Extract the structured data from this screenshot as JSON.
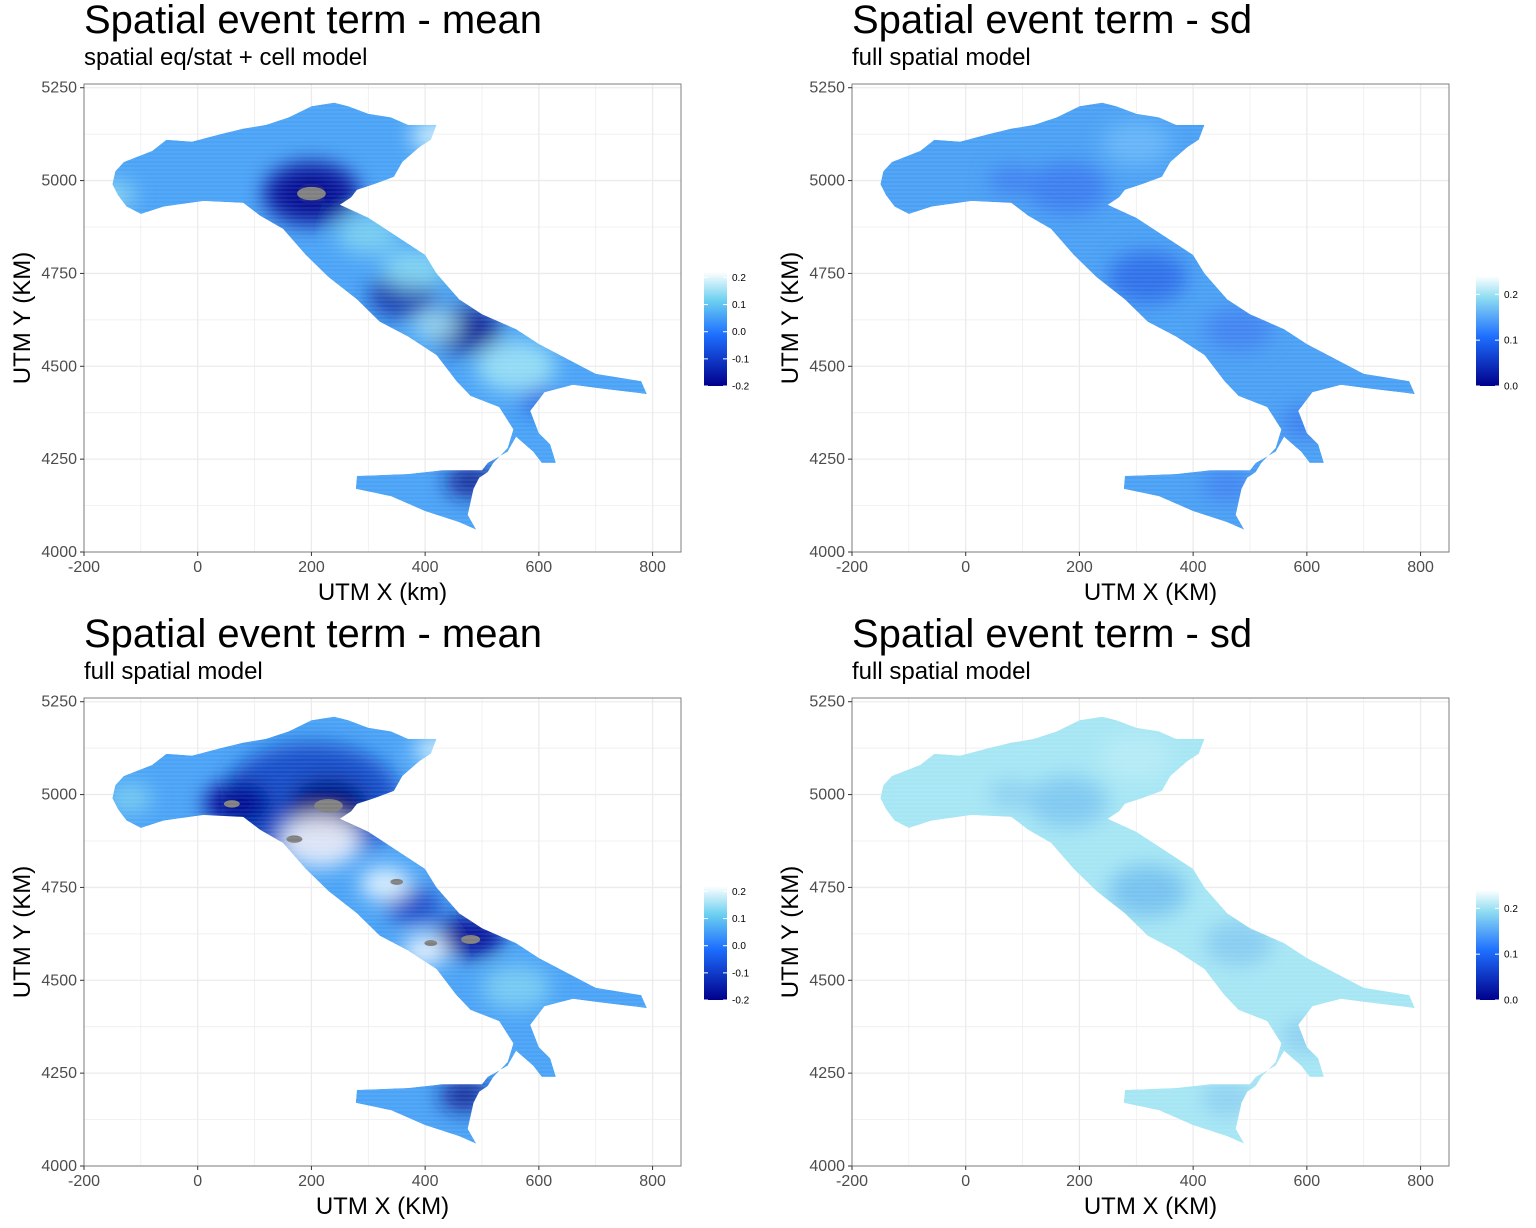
{
  "colors": {
    "scale_low": "#00008b",
    "scale_mid": "#1e6fff",
    "scale_high": "#ffffff",
    "missing": "#7f7f7f",
    "grid": "#ebebeb",
    "panel_border": "#7f7f7f"
  },
  "chart_data": [
    {
      "type": "heatmap",
      "title": "Spatial event term - mean",
      "subtitle": "spatial eq/stat + cell model",
      "xlabel": "UTM X (km)",
      "ylabel": "UTM Y (KM)",
      "xlim": [
        -200,
        850
      ],
      "ylim": [
        4000,
        5260
      ],
      "xticks": [
        "-200",
        "0",
        "200",
        "400",
        "600",
        "800"
      ],
      "yticks": [
        "4000",
        "4250",
        "4500",
        "4750",
        "5000",
        "5250"
      ],
      "legend": {
        "placement": "right",
        "ticks": [
          "0.2",
          "0.1",
          "0.0",
          "-0.1",
          "-0.2"
        ],
        "range": [
          -0.2,
          0.22
        ]
      },
      "grid": true,
      "variant": "mean1"
    },
    {
      "type": "heatmap",
      "title": "Spatial event term - sd",
      "subtitle": "full spatial model",
      "xlabel": "UTM X (KM)",
      "ylabel": "UTM Y (KM)",
      "xlim": [
        -200,
        850
      ],
      "ylim": [
        4000,
        5260
      ],
      "xticks": [
        "-200",
        "0",
        "200",
        "400",
        "600",
        "800"
      ],
      "yticks": [
        "4000",
        "4250",
        "4500",
        "4750",
        "5000",
        "5250"
      ],
      "legend": {
        "placement": "right",
        "ticks": [
          "0.2",
          "0.1",
          "0.0"
        ],
        "range": [
          0,
          0.24
        ]
      },
      "grid": true,
      "variant": "sd1"
    },
    {
      "type": "heatmap",
      "title": "Spatial event term - mean",
      "subtitle": "full spatial model",
      "xlabel": "UTM X (KM)",
      "ylabel": "UTM Y (KM)",
      "xlim": [
        -200,
        850
      ],
      "ylim": [
        4000,
        5260
      ],
      "xticks": [
        "-200",
        "0",
        "200",
        "400",
        "600",
        "800"
      ],
      "yticks": [
        "4000",
        "4250",
        "4500",
        "4750",
        "5000",
        "5250"
      ],
      "legend": {
        "placement": "right",
        "ticks": [
          "0.2",
          "0.1",
          "0.0",
          "-0.1",
          "-0.2"
        ],
        "range": [
          -0.2,
          0.22
        ]
      },
      "grid": true,
      "variant": "mean2"
    },
    {
      "type": "heatmap",
      "title": "Spatial event term - sd",
      "subtitle": "full spatial model",
      "xlabel": "UTM X (KM)",
      "ylabel": "UTM Y (KM)",
      "xlim": [
        -200,
        850
      ],
      "ylim": [
        4000,
        5260
      ],
      "xticks": [
        "-200",
        "0",
        "200",
        "400",
        "600",
        "800"
      ],
      "yticks": [
        "4000",
        "4250",
        "4500",
        "4750",
        "5000",
        "5250"
      ],
      "legend": {
        "placement": "right",
        "ticks": [
          "0.2",
          "0.1",
          "0.0"
        ],
        "range": [
          0,
          0.24
        ]
      },
      "grid": true,
      "variant": "sd2"
    }
  ]
}
